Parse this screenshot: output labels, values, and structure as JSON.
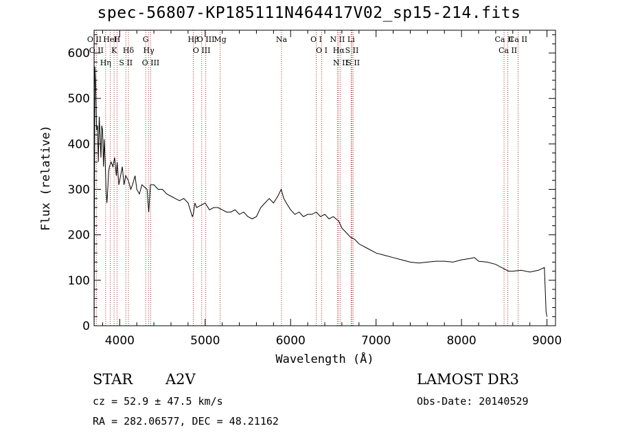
{
  "header": {
    "title": "spec-56807-KP185111N464417V02_sp15-214.fits"
  },
  "info": {
    "object_class": "STAR",
    "subclass": "A2V",
    "survey": "LAMOST DR3",
    "cz": "cz = 52.9 ± 47.5 km/s",
    "obs_date": "Obs-Date: 20140529",
    "radec": "RA = 282.06577, DEC =  48.21162"
  },
  "colors": {
    "spectrum": "#000000",
    "line_markers": "#b22222"
  },
  "chart_data": {
    "type": "line",
    "title": "spec-56807-KP185111N464417V02_sp15-214.fits",
    "xlabel": "Wavelength (Å)",
    "ylabel": "Flux (relative)",
    "xlim": [
      3700,
      9100
    ],
    "ylim": [
      0,
      650
    ],
    "xticks": [
      4000,
      5000,
      6000,
      7000,
      8000,
      9000
    ],
    "yticks": [
      0,
      100,
      200,
      300,
      400,
      500,
      600
    ],
    "grid": false,
    "series": [
      {
        "x": [
          3700,
          3710,
          3720,
          3730,
          3740,
          3750,
          3760,
          3770,
          3780,
          3790,
          3800,
          3810,
          3820,
          3830,
          3840,
          3850,
          3860,
          3870,
          3880,
          3890,
          3900,
          3920,
          3940,
          3960,
          3970,
          3990,
          4010,
          4030,
          4050,
          4070,
          4100,
          4130,
          4150,
          4180,
          4200,
          4230,
          4260,
          4290,
          4320,
          4340,
          4360,
          4400,
          4450,
          4500,
          4550,
          4600,
          4650,
          4700,
          4750,
          4800,
          4850,
          4861,
          4880,
          4900,
          4950,
          5000,
          5050,
          5100,
          5150,
          5200,
          5250,
          5300,
          5350,
          5400,
          5450,
          5500,
          5550,
          5600,
          5650,
          5700,
          5750,
          5800,
          5850,
          5890,
          5920,
          5950,
          6000,
          6050,
          6100,
          6150,
          6200,
          6250,
          6300,
          6350,
          6400,
          6450,
          6500,
          6563,
          6600,
          6650,
          6700,
          6750,
          6800,
          6900,
          7000,
          7100,
          7200,
          7300,
          7400,
          7500,
          7600,
          7700,
          7800,
          7900,
          8000,
          8100,
          8150,
          8200,
          8300,
          8400,
          8500,
          8550,
          8600,
          8700,
          8800,
          8900,
          8970,
          8990,
          9000
        ],
        "y": [
          10,
          570,
          520,
          430,
          440,
          360,
          460,
          420,
          370,
          440,
          430,
          350,
          410,
          360,
          300,
          270,
          300,
          340,
          350,
          355,
          360,
          350,
          370,
          330,
          360,
          310,
          330,
          350,
          310,
          330,
          320,
          300,
          310,
          330,
          300,
          290,
          310,
          305,
          300,
          250,
          310,
          310,
          300,
          300,
          290,
          285,
          280,
          275,
          280,
          270,
          240,
          245,
          270,
          260,
          265,
          270,
          255,
          260,
          260,
          255,
          250,
          250,
          255,
          245,
          250,
          240,
          235,
          240,
          260,
          270,
          280,
          270,
          285,
          300,
          280,
          270,
          255,
          245,
          250,
          240,
          245,
          245,
          250,
          240,
          245,
          235,
          240,
          230,
          215,
          205,
          195,
          190,
          180,
          170,
          160,
          155,
          150,
          145,
          140,
          138,
          140,
          142,
          142,
          140,
          145,
          148,
          150,
          142,
          140,
          135,
          125,
          120,
          120,
          122,
          118,
          122,
          128,
          30,
          20
        ]
      }
    ],
    "line_markers": [
      {
        "wavelength": 3704,
        "label": "O II"
      },
      {
        "wavelength": 3727,
        "label": "O II"
      },
      {
        "wavelength": 3835,
        "label": "Hη"
      },
      {
        "wavelength": 3889,
        "label": "HeI"
      },
      {
        "wavelength": 3934,
        "label": "K"
      },
      {
        "wavelength": 3969,
        "label": "H"
      },
      {
        "wavelength": 4072,
        "label": "S II"
      },
      {
        "wavelength": 4102,
        "label": "Hδ"
      },
      {
        "wavelength": 4304,
        "label": "G"
      },
      {
        "wavelength": 4340,
        "label": "Hγ"
      },
      {
        "wavelength": 4363,
        "label": "O III"
      },
      {
        "wavelength": 4861,
        "label": "Hβ"
      },
      {
        "wavelength": 4959,
        "label": "O III"
      },
      {
        "wavelength": 5007,
        "label": "O III"
      },
      {
        "wavelength": 5175,
        "label": "Mg"
      },
      {
        "wavelength": 5893,
        "label": "Na"
      },
      {
        "wavelength": 6300,
        "label": "O I"
      },
      {
        "wavelength": 6364,
        "label": "O I"
      },
      {
        "wavelength": 6548,
        "label": "N II"
      },
      {
        "wavelength": 6563,
        "label": "Hα"
      },
      {
        "wavelength": 6584,
        "label": "N II"
      },
      {
        "wavelength": 6708,
        "label": "Li"
      },
      {
        "wavelength": 6717,
        "label": "S II"
      },
      {
        "wavelength": 6731,
        "label": "S II"
      },
      {
        "wavelength": 8498,
        "label": "Ca II"
      },
      {
        "wavelength": 8542,
        "label": "Ca II"
      },
      {
        "wavelength": 8662,
        "label": "Ca II"
      }
    ]
  }
}
